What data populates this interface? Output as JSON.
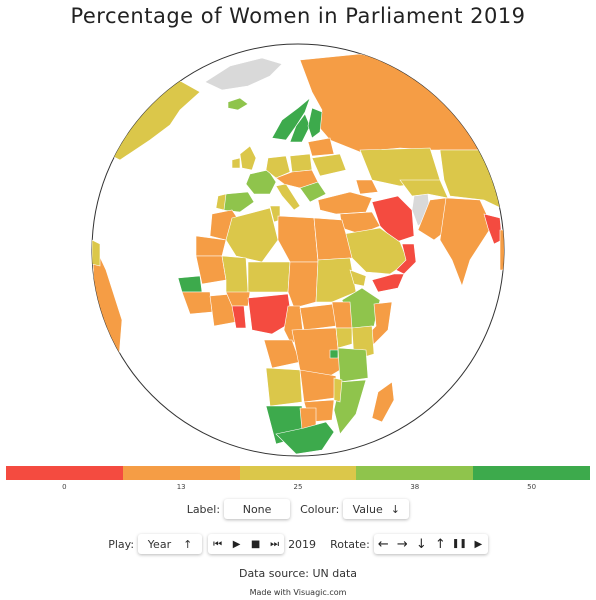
{
  "title": "Percentage of Women in Parliament 2019",
  "legend": {
    "colors": [
      "#f44b40",
      "#f59d45",
      "#dbc74a",
      "#8fc44c",
      "#3daa4c"
    ],
    "ticks": [
      "0",
      "13",
      "25",
      "38",
      "50"
    ]
  },
  "controls": {
    "label_caption": "Label:",
    "label_value": "None",
    "colour_caption": "Colour:",
    "colour_value": "Value",
    "colour_arrow": "↓",
    "play_caption": "Play:",
    "play_value": "Year",
    "play_arrow": "↑",
    "year": "2019",
    "rotate_caption": "Rotate:",
    "play_buttons": [
      "⏮",
      "▶",
      "■",
      "⏭"
    ],
    "rotate_buttons": [
      "←",
      "→",
      "↓",
      "↑",
      "❚❚",
      "▶"
    ]
  },
  "source": "Data source: UN data",
  "made_with": "Made with Visuagic.com",
  "map_colors": {
    "ocean": "#ffffff",
    "nodata": "#d9d9d9",
    "red": "#f44b40",
    "orange": "#f59d45",
    "yellow": "#dbc74a",
    "lightgreen": "#8fc44c",
    "green": "#3daa4c"
  }
}
